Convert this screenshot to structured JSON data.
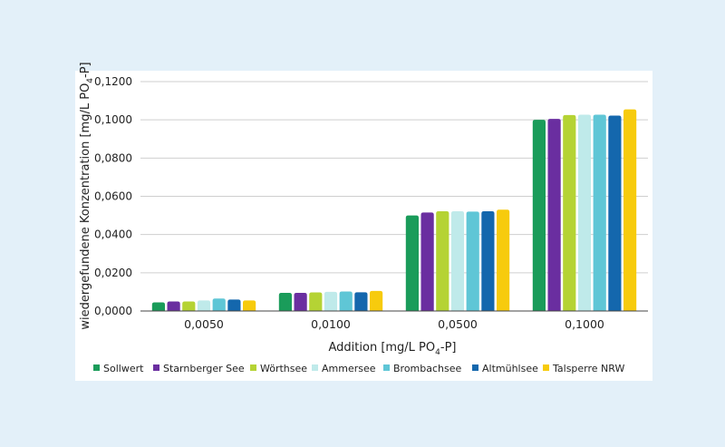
{
  "chart_data": {
    "type": "bar",
    "xlabel_main": "Addition [mg/L PO",
    "xlabel_sub": "4",
    "xlabel_end": "-P]",
    "ylabel_main": "wiedergefundene Konzentration [mg/L PO",
    "ylabel_sub": "4",
    "ylabel_end": "-P]",
    "categories": [
      "0,0050",
      "0,0100",
      "0,0500",
      "0,1000"
    ],
    "ylim": [
      0,
      0.12
    ],
    "yticks": [
      0,
      0.02,
      0.04,
      0.06,
      0.08,
      0.1,
      0.12
    ],
    "ytick_labels": [
      "0,0000",
      "0,0200",
      "0,0400",
      "0,0600",
      "0,0800",
      "0,1000",
      "0,1200"
    ],
    "grid": true,
    "legend_position": "bottom",
    "series": [
      {
        "name": "Sollwert",
        "color": "#1a9c5a",
        "values": [
          0.0045,
          0.0095,
          0.05,
          0.1
        ]
      },
      {
        "name": "Starnberger See",
        "color": "#6a2ea0",
        "values": [
          0.005,
          0.0095,
          0.0515,
          0.1005
        ]
      },
      {
        "name": "Wörthsee",
        "color": "#b5d334",
        "values": [
          0.005,
          0.0097,
          0.0522,
          0.1025
        ]
      },
      {
        "name": "Ammersee",
        "color": "#bfeaea",
        "values": [
          0.0055,
          0.01,
          0.0522,
          0.1027
        ]
      },
      {
        "name": "Brombachsee",
        "color": "#5fc6d6",
        "values": [
          0.0065,
          0.0102,
          0.052,
          0.1027
        ]
      },
      {
        "name": "Altmühlsee",
        "color": "#1467ad",
        "values": [
          0.006,
          0.0098,
          0.0522,
          0.1022
        ]
      },
      {
        "name": "Talsperre NRW",
        "color": "#f7cb0d",
        "values": [
          0.0055,
          0.0105,
          0.053,
          0.1055
        ]
      }
    ]
  }
}
